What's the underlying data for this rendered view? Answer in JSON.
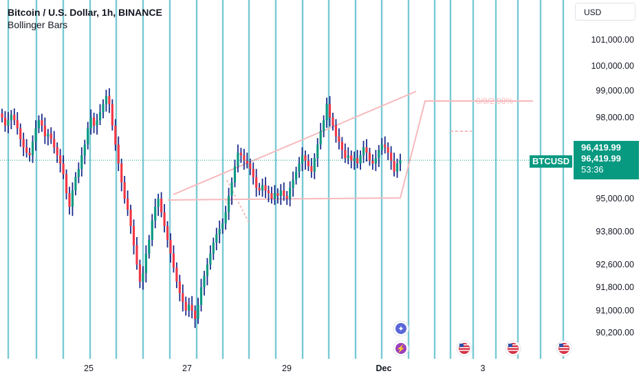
{
  "header": {
    "title": "Bitcoin / U.S. Dollar, 1h, BINANCE",
    "indicator": "Bollinger Bars"
  },
  "currency_button": "USD",
  "price_tag": {
    "symbol": "BTCUSD",
    "price": "96,419.99",
    "price_dup": "96,419.99",
    "countdown": "53:36"
  },
  "drawing_labels": {
    "pct": "0/0/2.08%",
    "small": "65"
  },
  "icons": [
    "star-event-icon",
    "lightning-event-icon",
    "us-flag-event-icon",
    "us-flag-event-icon",
    "us-flag-event-icon"
  ],
  "colors": {
    "up": "#089981",
    "down": "#f23645",
    "bar": "#1a2a8a",
    "vline": "#68c4cf",
    "drawing": "#f7b8bc",
    "tag": "#089981"
  },
  "chart_data": {
    "type": "line",
    "title": "Bitcoin / U.S. Dollar, 1h, BINANCE",
    "x_ticks": [
      "25",
      "27",
      "29",
      "Dec",
      "3"
    ],
    "y_ticks": [
      "101,000.00",
      "100,000.00",
      "99,000.00",
      "98,000.00",
      "95,000.00",
      "93,800.00",
      "92,600.00",
      "91,800.00",
      "91,000.00",
      "90,200.00"
    ],
    "ylim": [
      89800,
      102000
    ],
    "current_price": 96419.99,
    "series": [
      {
        "values": [
          98000,
          97700,
          97900,
          98100,
          97900,
          97600,
          97200,
          96900,
          96700,
          96600,
          97100,
          97600,
          97900,
          97700,
          97300,
          97400,
          97200,
          96900,
          96600,
          96300,
          95900,
          95200,
          94700,
          95300,
          95800,
          96100,
          96600,
          97000,
          97600,
          98000,
          97700,
          97900,
          98200,
          98500,
          98800,
          98500,
          97700,
          97000,
          96300,
          95600,
          95000,
          94600,
          94000,
          93300,
          92600,
          92000,
          92300,
          93000,
          93500,
          94200,
          94700,
          95000,
          94500,
          94000,
          93500,
          93000,
          92500,
          92000,
          91600,
          91300,
          91000,
          91200,
          91000,
          90700,
          91200,
          91800,
          92200,
          92600,
          93000,
          93400,
          93700,
          93900,
          94100,
          94500,
          95100,
          95600,
          96200,
          96700,
          96600,
          96400,
          96300,
          96100,
          95800,
          95400,
          95300,
          95500,
          95300,
          95200,
          95000,
          95200,
          95100,
          95300,
          95100,
          95000,
          95400,
          95700,
          96000,
          96300,
          96600,
          96400,
          96200,
          96000,
          96500,
          97000,
          97500,
          97900,
          98500,
          98000,
          97700,
          97300,
          97100,
          96800,
          96500,
          96600,
          96400,
          96500,
          96300,
          96600,
          96900,
          96700,
          96400,
          96300,
          96500,
          96800,
          97000,
          96900,
          96700,
          96400,
          96000,
          96300,
          96419.99
        ]
      }
    ]
  }
}
